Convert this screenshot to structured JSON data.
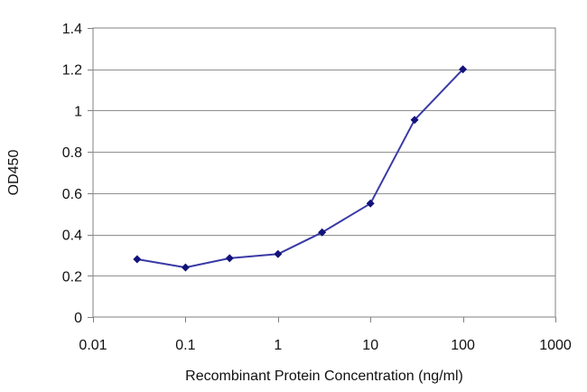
{
  "chart_data": {
    "type": "line",
    "title": "",
    "xlabel": "Recombinant Protein Concentration (ng/ml)",
    "ylabel": "OD450",
    "x_scale": "log",
    "xlim": [
      0.01,
      1000
    ],
    "ylim": [
      0,
      1.4
    ],
    "x_ticks": [
      "0.01",
      "0.1",
      "1",
      "10",
      "100",
      "1000"
    ],
    "y_ticks": [
      "0",
      "0.2",
      "0.4",
      "0.6",
      "0.8",
      "1",
      "1.2",
      "1.4"
    ],
    "grid": "horizontal",
    "legend": "none",
    "series": [
      {
        "x": [
          0.03,
          0.1,
          0.3,
          1,
          3,
          10,
          30,
          100
        ],
        "y": [
          0.28,
          0.24,
          0.285,
          0.305,
          0.41,
          0.55,
          0.955,
          1.2
        ]
      }
    ],
    "colors": {
      "line": "#3a3aa6",
      "marker": "#12127a",
      "grid": "#909090",
      "axis": "#808080"
    }
  }
}
